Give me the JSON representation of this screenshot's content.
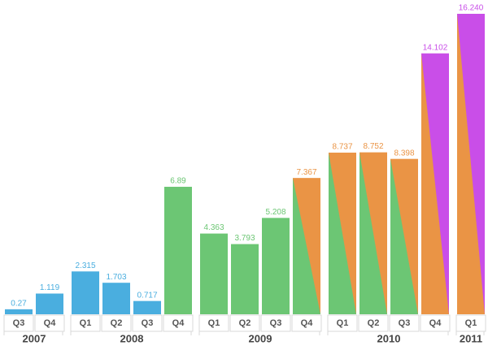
{
  "chart_data": {
    "type": "bar",
    "groups": [
      {
        "name": "2007",
        "categories": [
          "Q3",
          "Q4"
        ],
        "values": [
          0.27,
          1.119
        ],
        "value_labels": [
          "0.27",
          "1.119"
        ],
        "colors": [
          [
            "#4aaedf"
          ],
          [
            "#4aaedf"
          ]
        ]
      },
      {
        "name": "2008",
        "categories": [
          "Q1",
          "Q2",
          "Q3",
          "Q4"
        ],
        "values": [
          2.315,
          1.703,
          0.717,
          6.89
        ],
        "value_labels": [
          "2.315",
          "1.703",
          "0.717",
          "6.89"
        ],
        "colors": [
          [
            "#4aaedf"
          ],
          [
            "#4aaedf"
          ],
          [
            "#4aaedf"
          ],
          [
            "#6cc674"
          ]
        ]
      },
      {
        "name": "2009",
        "categories": [
          "Q1",
          "Q2",
          "Q3",
          "Q4"
        ],
        "values": [
          4.363,
          3.793,
          5.208,
          7.367
        ],
        "value_labels": [
          "4.363",
          "3.793",
          "5.208",
          "7.367"
        ],
        "colors": [
          [
            "#6cc674"
          ],
          [
            "#6cc674"
          ],
          [
            "#6cc674"
          ],
          [
            "#ea9445",
            "#6cc674"
          ]
        ]
      },
      {
        "name": "2010",
        "categories": [
          "Q1",
          "Q2",
          "Q3",
          "Q4"
        ],
        "values": [
          8.737,
          8.752,
          8.398,
          14.102
        ],
        "value_labels": [
          "8.737",
          "8.752",
          "8.398",
          "14.102"
        ],
        "colors": [
          [
            "#ea9445",
            "#6cc674"
          ],
          [
            "#ea9445",
            "#6cc674"
          ],
          [
            "#ea9445",
            "#6cc674"
          ],
          [
            "#c94ee8",
            "#ea9445"
          ]
        ]
      },
      {
        "name": "2011",
        "categories": [
          "Q1"
        ],
        "values": [
          16.24
        ],
        "value_labels": [
          "16.240"
        ],
        "colors": [
          [
            "#c94ee8",
            "#ea9445"
          ]
        ]
      }
    ]
  }
}
